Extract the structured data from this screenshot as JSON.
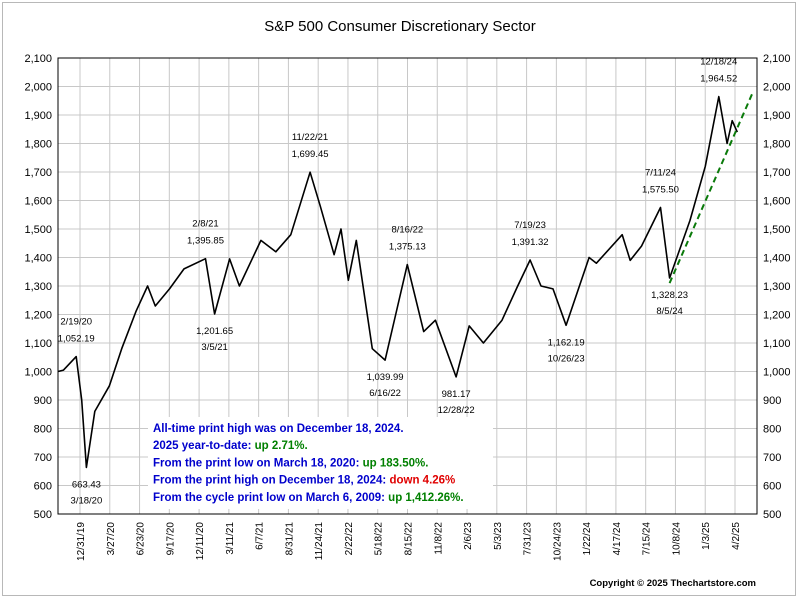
{
  "chart_data": {
    "type": "line",
    "title": "S&P 500 Consumer Discretionary Sector",
    "xlabel": "",
    "ylabel": "",
    "ylim": [
      500,
      2100
    ],
    "yticks": [
      500,
      600,
      700,
      800,
      900,
      1000,
      1100,
      1200,
      1300,
      1400,
      1500,
      1600,
      1700,
      1800,
      1900,
      2000,
      2100
    ],
    "ytick_labels": [
      "500",
      "600",
      "700",
      "800",
      "900",
      "1,000",
      "1,100",
      "1,200",
      "1,300",
      "1,400",
      "1,500",
      "1,600",
      "1,700",
      "1,800",
      "1,900",
      "2,000",
      "2,100"
    ],
    "xlim": [
      "2019-12-31",
      "2025-04-02"
    ],
    "xtick_labels": [
      "12/31/19",
      "3/27/20",
      "6/23/20",
      "9/17/20",
      "12/11/20",
      "3/11/21",
      "6/7/21",
      "8/31/21",
      "11/24/21",
      "2/22/22",
      "5/18/22",
      "8/15/22",
      "11/8/22",
      "2/6/23",
      "5/3/23",
      "7/31/23",
      "10/24/23",
      "1/22/24",
      "4/17/24",
      "7/15/24",
      "10/8/24",
      "1/3/25",
      "4/2/25"
    ],
    "grid": true,
    "legend": "none",
    "series": [
      {
        "color": "#000000",
        "x": [
          "2019-12-31",
          "2020-01-15",
          "2020-02-19",
          "2020-03-05",
          "2020-03-18",
          "2020-04-10",
          "2020-05-20",
          "2020-06-23",
          "2020-08-01",
          "2020-09-02",
          "2020-09-23",
          "2020-11-01",
          "2020-12-11",
          "2021-02-08",
          "2021-03-05",
          "2021-04-15",
          "2021-05-12",
          "2021-07-10",
          "2021-08-20",
          "2021-09-30",
          "2021-11-22",
          "2021-12-20",
          "2022-01-27",
          "2022-02-15",
          "2022-03-07",
          "2022-03-29",
          "2022-05-12",
          "2022-06-16",
          "2022-07-15",
          "2022-08-16",
          "2022-09-30",
          "2022-11-01",
          "2022-12-28",
          "2023-02-02",
          "2023-03-13",
          "2023-05-03",
          "2023-06-15",
          "2023-07-19",
          "2023-08-18",
          "2023-09-20",
          "2023-10-26",
          "2023-12-28",
          "2024-01-17",
          "2024-03-28",
          "2024-04-19",
          "2024-05-20",
          "2024-07-11",
          "2024-08-05",
          "2024-09-30",
          "2024-11-11",
          "2024-12-18",
          "2025-01-10",
          "2025-01-24",
          "2025-02-07"
        ],
        "y": [
          1000,
          1005,
          1052.19,
          900,
          663.43,
          860,
          950,
          1080,
          1210,
          1300,
          1230,
          1290,
          1360,
          1395.85,
          1201.65,
          1395,
          1300,
          1460,
          1420,
          1480,
          1699.45,
          1580,
          1410,
          1500,
          1320,
          1460,
          1080,
          1039.99,
          1200,
          1375.13,
          1140,
          1180,
          981.17,
          1160,
          1100,
          1180,
          1300,
          1391.32,
          1300,
          1290,
          1162.19,
          1400,
          1380,
          1480,
          1390,
          1440,
          1575.5,
          1328.23,
          1530,
          1720,
          1964.52,
          1800,
          1880,
          1840
        ]
      }
    ],
    "trendline": {
      "color": "#0a7a0a",
      "style": "dashed",
      "x": [
        "2024-08-05",
        "2025-03-20"
      ],
      "y": [
        1310,
        1975
      ]
    },
    "annotations": [
      {
        "date": "11/22/21",
        "value": "1,699.45",
        "x": "2021-11-22",
        "y": 1699.45,
        "pos": "above"
      },
      {
        "date": "12/18/24",
        "value": "1,964.52",
        "x": "2024-12-18",
        "y": 1964.52,
        "pos": "above"
      },
      {
        "date": "7/11/24",
        "value": "1,575.50",
        "x": "2024-07-11",
        "y": 1575.5,
        "pos": "above"
      },
      {
        "date": "2/8/21",
        "value": "1,395.85",
        "x": "2021-02-08",
        "y": 1395.85,
        "pos": "above"
      },
      {
        "date": "8/16/22",
        "value": "1,375.13",
        "x": "2022-08-16",
        "y": 1375.13,
        "pos": "above"
      },
      {
        "date": "7/19/23",
        "value": "1,391.32",
        "x": "2023-07-19",
        "y": 1391.32,
        "pos": "above"
      },
      {
        "date": "2/19/20",
        "value": "1,052.19",
        "x": "2020-02-19",
        "y": 1052.19,
        "pos": "above"
      },
      {
        "date": "3/5/21",
        "value": "1,201.65",
        "x": "2021-03-05",
        "y": 1201.65,
        "pos": "below"
      },
      {
        "date": "6/16/22",
        "value": "1,039.99",
        "x": "2022-06-16",
        "y": 1039.99,
        "pos": "below"
      },
      {
        "date": "12/28/22",
        "value": "981.17",
        "x": "2022-12-28",
        "y": 981.17,
        "pos": "below"
      },
      {
        "date": "10/26/23",
        "value": "1,162.19",
        "x": "2023-10-26",
        "y": 1162.19,
        "pos": "below"
      },
      {
        "date": "8/5/24",
        "value": "1,328.23",
        "x": "2024-08-05",
        "y": 1328.23,
        "pos": "below"
      },
      {
        "date": "3/18/20",
        "value": "663.43",
        "x": "2020-03-18",
        "y": 663.43,
        "pos": "below"
      }
    ],
    "stats_text": [
      {
        "text": "All-time print high was on December 18, 2024.",
        "highlight": "",
        "highlight_color": ""
      },
      {
        "text": "2025 year-to-date:",
        "highlight": "up 2.71%.",
        "highlight_color": "#008000"
      },
      {
        "text": "From the print low on March 18, 2020:",
        "highlight": "up 183.50%.",
        "highlight_color": "#008000"
      },
      {
        "text": "From the print high on December 18, 2024:",
        "highlight": "down 4.26%",
        "highlight_color": "#e00000"
      },
      {
        "text": "From the cycle print low on March 6, 2009:",
        "highlight": "up 1,412.26%.",
        "highlight_color": "#008000"
      }
    ],
    "stats_color": "#0000cc"
  },
  "copyright": "Copyright © 2025 Thechartstore.com"
}
